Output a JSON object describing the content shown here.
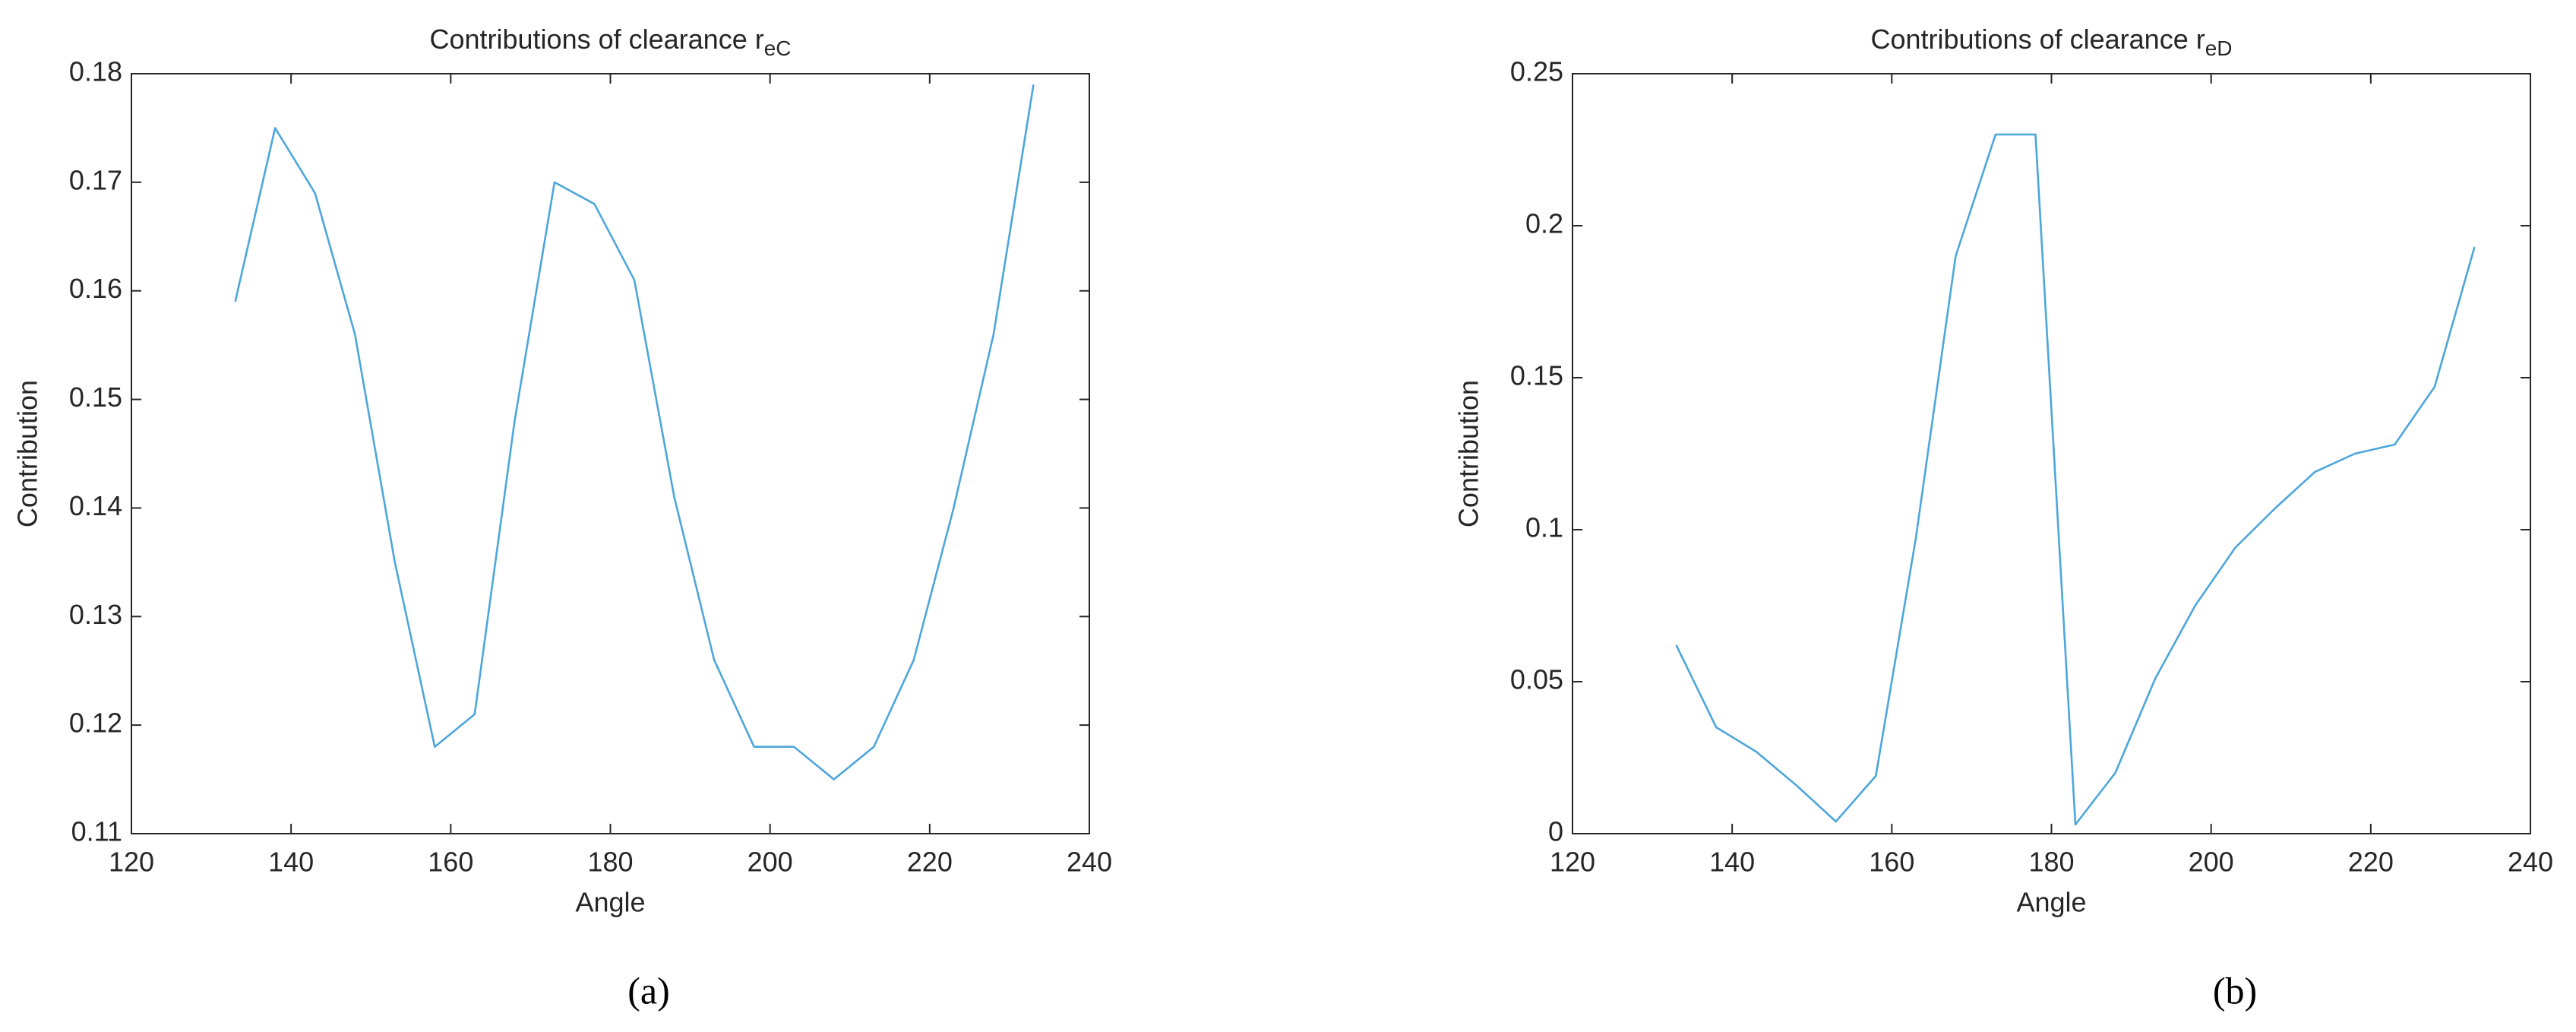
{
  "chart_data": [
    {
      "type": "line",
      "title": "Contributions of clearance r",
      "title_subscript": "eC",
      "xlabel": "Angle",
      "ylabel": "Contribution",
      "caption": "(a)",
      "x": [
        133,
        138,
        143,
        148,
        153,
        158,
        163,
        168,
        173,
        178,
        183,
        188,
        193,
        198,
        203,
        208,
        213,
        218,
        223,
        228,
        233
      ],
      "series": [
        {
          "color": "#4da6db",
          "values": [
            0.159,
            0.175,
            0.169,
            0.156,
            0.135,
            0.118,
            0.121,
            0.148,
            0.17,
            0.168,
            0.161,
            0.141,
            0.126,
            0.118,
            0.118,
            0.115,
            0.118,
            0.126,
            0.14,
            0.156,
            0.179
          ]
        }
      ],
      "xlim": [
        120,
        240
      ],
      "xticks": [
        120,
        140,
        160,
        180,
        200,
        220,
        240
      ],
      "ylim": [
        0.11,
        0.18
      ],
      "yticks": [
        0.11,
        0.12,
        0.13,
        0.14,
        0.15,
        0.16,
        0.17,
        0.18
      ]
    },
    {
      "type": "line",
      "title": "Contributions of clearance r",
      "title_subscript": "eD",
      "xlabel": "Angle",
      "ylabel": "Contribution",
      "caption": "(b)",
      "x": [
        133,
        138,
        143,
        148,
        153,
        158,
        163,
        168,
        173,
        178,
        183,
        188,
        193,
        198,
        203,
        208,
        213,
        218,
        223,
        228,
        233
      ],
      "series": [
        {
          "color": "#4da6db",
          "values": [
            0.062,
            0.035,
            0.027,
            0.016,
            0.004,
            0.019,
            0.097,
            0.19,
            0.23,
            0.23,
            0.003,
            0.02,
            0.051,
            0.075,
            0.094,
            0.107,
            0.119,
            0.125,
            0.128,
            0.147,
            0.193
          ]
        }
      ],
      "xlim": [
        120,
        240
      ],
      "xticks": [
        120,
        140,
        160,
        180,
        200,
        220,
        240
      ],
      "ylim": [
        0,
        0.25
      ],
      "yticks": [
        0,
        0.05,
        0.1,
        0.15,
        0.2,
        0.25
      ]
    }
  ]
}
